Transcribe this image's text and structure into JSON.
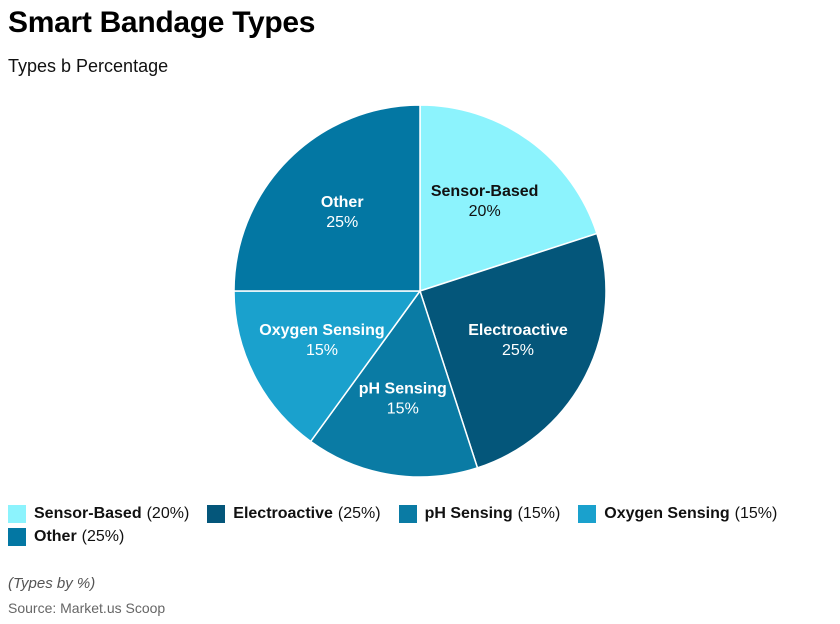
{
  "header": {
    "title": "Smart Bandage Types",
    "subtitle": "Types b Percentage"
  },
  "chart_data": {
    "type": "pie",
    "categories": [
      "Sensor-Based",
      "Electroactive",
      "pH Sensing",
      "Oxygen Sensing",
      "Other"
    ],
    "values": [
      20,
      25,
      15,
      15,
      25
    ],
    "value_labels": [
      "20%",
      "25%",
      "15%",
      "15%",
      "25%"
    ],
    "legend_values": [
      "(20%)",
      "(25%)",
      "(15%)",
      "(15%)",
      "(25%)"
    ],
    "colors": [
      "#8cf3fd",
      "#04567a",
      "#0a7ba4",
      "#1aa1cd",
      "#0377a3"
    ],
    "legend_position": "bottom-left",
    "start_angle": "top, clockwise"
  },
  "footer": {
    "note": "(Types by %)",
    "source": "Source: Market.us Scoop"
  }
}
